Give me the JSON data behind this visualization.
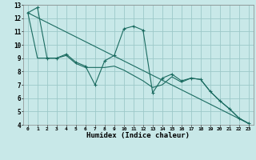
{
  "xlabel": "Humidex (Indice chaleur)",
  "xlim": [
    -0.5,
    23.5
  ],
  "ylim": [
    4,
    13
  ],
  "xticks": [
    0,
    1,
    2,
    3,
    4,
    5,
    6,
    7,
    8,
    9,
    10,
    11,
    12,
    13,
    14,
    15,
    16,
    17,
    18,
    19,
    20,
    21,
    22,
    23
  ],
  "yticks": [
    4,
    5,
    6,
    7,
    8,
    9,
    10,
    11,
    12,
    13
  ],
  "bg_color": "#c8e8e8",
  "line_color": "#1a6b60",
  "grid_color": "#9cc8c8",
  "line1": {
    "x": [
      0,
      1,
      2,
      3,
      4,
      5,
      6,
      7,
      8,
      9,
      10,
      11,
      12,
      13,
      14,
      15,
      16,
      17,
      18,
      19,
      20,
      21,
      22,
      23
    ],
    "y": [
      12.4,
      12.8,
      9.0,
      9.0,
      9.3,
      8.7,
      8.4,
      7.0,
      8.8,
      9.2,
      11.2,
      11.4,
      11.1,
      6.4,
      7.5,
      7.8,
      7.3,
      7.5,
      7.4,
      6.5,
      5.8,
      5.2,
      4.5,
      4.1
    ]
  },
  "line2": {
    "x": [
      0,
      1,
      2,
      3,
      4,
      5,
      6,
      7,
      8,
      9,
      10,
      11,
      12,
      13,
      14,
      15,
      16,
      17,
      18,
      19,
      20,
      21,
      22,
      23
    ],
    "y": [
      12.4,
      9.0,
      9.0,
      9.0,
      9.2,
      8.6,
      8.3,
      8.3,
      8.3,
      8.4,
      8.1,
      7.7,
      7.3,
      6.8,
      7.0,
      7.6,
      7.2,
      7.5,
      7.4,
      6.5,
      5.8,
      5.2,
      4.5,
      4.1
    ]
  },
  "line3": {
    "x": [
      0,
      23
    ],
    "y": [
      12.4,
      4.1
    ]
  }
}
